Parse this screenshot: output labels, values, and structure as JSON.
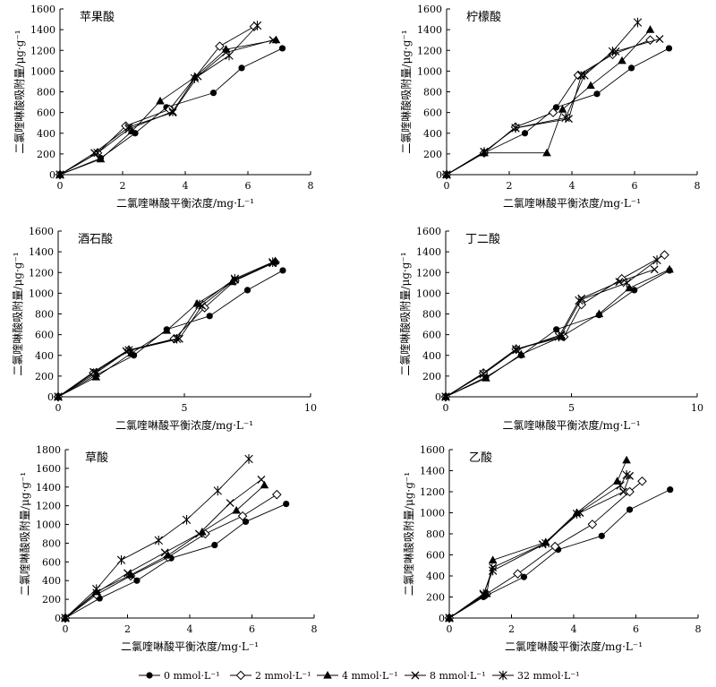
{
  "legend": [
    {
      "name": "0 mmol·L⁻¹",
      "marker": "filled-circle"
    },
    {
      "name": "2 mmol·L⁻¹",
      "marker": "open-diamond"
    },
    {
      "name": "4 mmol·L⁻¹",
      "marker": "filled-triangle"
    },
    {
      "name": "8 mmol·L⁻¹",
      "marker": "cross"
    },
    {
      "name": "32 mmol·L⁻¹",
      "marker": "asterisk"
    }
  ],
  "chart_data": [
    {
      "type": "line",
      "title": "苹果酸",
      "xlabel": "二氯喹啉酸平衡浓度/mg·L⁻¹",
      "ylabel": "二氯喹啉酸吸附量/μg·g⁻¹",
      "xlim": [
        0,
        8
      ],
      "ylim": [
        0,
        1600
      ],
      "xticks": [
        0,
        2,
        4,
        6,
        8
      ],
      "yticks": [
        0,
        200,
        400,
        600,
        800,
        1000,
        1200,
        1400,
        1600
      ],
      "series": [
        {
          "name": "0 mmol·L⁻¹",
          "x": [
            0,
            1.3,
            2.4,
            3.4,
            4.9,
            5.8,
            7.1
          ],
          "y": [
            0,
            160,
            400,
            650,
            790,
            1030,
            1220
          ]
        },
        {
          "name": "2 mmol·L⁻¹",
          "x": [
            0,
            1.2,
            2.1,
            3.5,
            5.1,
            6.2
          ],
          "y": [
            0,
            210,
            470,
            630,
            1240,
            1430
          ]
        },
        {
          "name": "4 mmol·L⁻¹",
          "x": [
            0,
            1.3,
            2.3,
            3.2,
            4.3,
            5.3,
            6.9
          ],
          "y": [
            0,
            150,
            420,
            710,
            940,
            1210,
            1300
          ]
        },
        {
          "name": "8 mmol·L⁻¹",
          "x": [
            0,
            1.1,
            2.2,
            3.6,
            4.4,
            5.3,
            6.8
          ],
          "y": [
            0,
            210,
            460,
            600,
            950,
            1180,
            1300
          ]
        },
        {
          "name": "32 mmol·L⁻¹",
          "x": [
            0,
            1.2,
            2.2,
            3.6,
            4.3,
            5.4,
            6.3
          ],
          "y": [
            0,
            210,
            440,
            610,
            930,
            1150,
            1440
          ]
        }
      ]
    },
    {
      "type": "line",
      "title": "柠檬酸",
      "xlabel": "二氯喹啉酸平衡浓度/mg·L⁻¹",
      "ylabel": "二氯喹啉酸吸附量/μg·g⁻¹",
      "xlim": [
        0,
        8
      ],
      "ylim": [
        0,
        1600
      ],
      "xticks": [
        0,
        2,
        4,
        6,
        8
      ],
      "yticks": [
        0,
        200,
        400,
        600,
        800,
        1000,
        1200,
        1400,
        1600
      ],
      "series": [
        {
          "name": "0 mmol·L⁻¹",
          "x": [
            0,
            1.2,
            2.5,
            3.5,
            4.8,
            5.9,
            7.1
          ],
          "y": [
            0,
            210,
            400,
            650,
            780,
            1030,
            1220
          ]
        },
        {
          "name": "2 mmol·L⁻¹",
          "x": [
            0,
            1.2,
            2.2,
            3.4,
            4.2,
            5.3,
            6.5
          ],
          "y": [
            0,
            210,
            460,
            600,
            960,
            1160,
            1300
          ]
        },
        {
          "name": "4 mmol·L⁻¹",
          "x": [
            0,
            1.2,
            3.2,
            3.7,
            4.6,
            5.6,
            6.5
          ],
          "y": [
            0,
            210,
            210,
            630,
            860,
            1100,
            1400
          ]
        },
        {
          "name": "8 mmol·L⁻¹",
          "x": [
            0,
            1.2,
            2.2,
            3.9,
            4.3,
            5.4,
            6.8
          ],
          "y": [
            0,
            220,
            450,
            540,
            960,
            1190,
            1310
          ]
        },
        {
          "name": "32 mmol·L⁻¹",
          "x": [
            0,
            1.2,
            2.2,
            3.8,
            4.4,
            5.3,
            6.1
          ],
          "y": [
            0,
            220,
            450,
            550,
            960,
            1190,
            1470
          ]
        }
      ]
    },
    {
      "type": "line",
      "title": "酒石酸",
      "xlabel": "二氯喹啉酸平衡浓度/mg·L⁻¹",
      "ylabel": "二氯喹啉酸吸附量/μg·g⁻¹",
      "xlim": [
        0,
        10
      ],
      "ylim": [
        0,
        1600
      ],
      "xticks": [
        0,
        5,
        10
      ],
      "yticks": [
        0,
        200,
        400,
        600,
        800,
        1000,
        1200,
        1400,
        1600
      ],
      "series": [
        {
          "name": "0 mmol·L⁻¹",
          "x": [
            0,
            1.5,
            3.0,
            4.3,
            6.0,
            7.5,
            8.9
          ],
          "y": [
            0,
            210,
            400,
            650,
            780,
            1030,
            1220
          ]
        },
        {
          "name": "2 mmol·L⁻¹",
          "x": [
            0,
            1.4,
            2.8,
            4.6,
            5.8,
            7.0,
            8.6
          ],
          "y": [
            0,
            230,
            450,
            560,
            860,
            1120,
            1300
          ]
        },
        {
          "name": "4 mmol·L⁻¹",
          "x": [
            0,
            1.5,
            2.9,
            4.3,
            5.5,
            6.9,
            8.6
          ],
          "y": [
            0,
            190,
            420,
            640,
            900,
            1110,
            1310
          ]
        },
        {
          "name": "8 mmol·L⁻¹",
          "x": [
            0,
            1.4,
            2.7,
            4.8,
            5.7,
            7.0,
            8.5
          ],
          "y": [
            0,
            240,
            440,
            560,
            880,
            1130,
            1290
          ]
        },
        {
          "name": "32 mmol·L⁻¹",
          "x": [
            0,
            1.5,
            2.8,
            4.7,
            5.6,
            7.0,
            8.5
          ],
          "y": [
            0,
            230,
            450,
            560,
            890,
            1140,
            1300
          ]
        }
      ]
    },
    {
      "type": "line",
      "title": "丁二酸",
      "xlabel": "二氯喹啉酸平衡浓度/mg·L⁻¹",
      "ylabel": "二氯喹啉酸吸附量/μg·g⁻¹",
      "xlim": [
        0,
        10
      ],
      "ylim": [
        0,
        1600
      ],
      "xticks": [
        0,
        5,
        10
      ],
      "yticks": [
        0,
        200,
        400,
        600,
        800,
        1000,
        1200,
        1400,
        1600
      ],
      "series": [
        {
          "name": "0 mmol·L⁻¹",
          "x": [
            0,
            1.6,
            3.0,
            4.4,
            6.1,
            7.5,
            8.9
          ],
          "y": [
            0,
            190,
            400,
            650,
            790,
            1030,
            1220
          ]
        },
        {
          "name": "2 mmol·L⁻¹",
          "x": [
            0,
            1.5,
            2.8,
            4.7,
            5.4,
            7.0,
            8.7
          ],
          "y": [
            0,
            230,
            460,
            580,
            890,
            1140,
            1370
          ]
        },
        {
          "name": "4 mmol·L⁻¹",
          "x": [
            0,
            1.6,
            3.0,
            4.6,
            6.1,
            7.3,
            8.9
          ],
          "y": [
            0,
            180,
            410,
            580,
            800,
            1050,
            1230
          ]
        },
        {
          "name": "8 mmol·L⁻¹",
          "x": [
            0,
            1.5,
            2.8,
            4.6,
            5.4,
            6.9,
            8.3
          ],
          "y": [
            0,
            220,
            450,
            600,
            950,
            1110,
            1230
          ]
        },
        {
          "name": "32 mmol·L⁻¹",
          "x": [
            0,
            1.5,
            2.8,
            4.5,
            5.3,
            7.2,
            8.4
          ],
          "y": [
            0,
            220,
            460,
            580,
            930,
            1100,
            1320
          ]
        }
      ]
    },
    {
      "type": "line",
      "title": "草酸",
      "xlabel": "二氯喹啉酸平衡浓度/mg·L⁻¹",
      "ylabel": "二氯喹啉酸吸附量/μg·g⁻¹",
      "xlim": [
        0,
        8
      ],
      "ylim": [
        0,
        1800
      ],
      "xticks": [
        0,
        2,
        4,
        6,
        8
      ],
      "yticks": [
        0,
        200,
        400,
        600,
        800,
        1000,
        1200,
        1400,
        1600,
        1800
      ],
      "series": [
        {
          "name": "0 mmol·L⁻¹",
          "x": [
            0,
            1.1,
            2.3,
            3.4,
            4.8,
            5.8,
            7.1
          ],
          "y": [
            0,
            210,
            400,
            640,
            780,
            1030,
            1220
          ]
        },
        {
          "name": "2 mmol·L⁻¹",
          "x": [
            0,
            1.0,
            2.1,
            3.3,
            4.5,
            5.7,
            6.8
          ],
          "y": [
            0,
            250,
            450,
            650,
            900,
            1090,
            1320
          ]
        },
        {
          "name": "4 mmol·L⁻¹",
          "x": [
            0,
            1.0,
            2.1,
            3.3,
            4.4,
            5.5,
            6.4
          ],
          "y": [
            0,
            280,
            460,
            670,
            920,
            1150,
            1420
          ]
        },
        {
          "name": "8 mmol·L⁻¹",
          "x": [
            0,
            1.0,
            2.0,
            3.2,
            4.3,
            5.3,
            6.3
          ],
          "y": [
            0,
            270,
            480,
            700,
            900,
            1230,
            1480
          ]
        },
        {
          "name": "32 mmol·L⁻¹",
          "x": [
            0,
            1.0,
            1.8,
            3.0,
            3.9,
            4.9,
            5.9
          ],
          "y": [
            0,
            310,
            620,
            830,
            1050,
            1360,
            1700
          ]
        }
      ]
    },
    {
      "type": "line",
      "title": "乙酸",
      "xlabel": "二氯喹啉酸平衡浓度/mg·L⁻¹",
      "ylabel": "二氯喹啉酸吸附量/μg·g⁻¹",
      "xlim": [
        0,
        8
      ],
      "ylim": [
        0,
        1600
      ],
      "xticks": [
        0,
        2,
        4,
        6,
        8
      ],
      "yticks": [
        0,
        200,
        400,
        600,
        800,
        1000,
        1200,
        1400,
        1600
      ],
      "series": [
        {
          "name": "0 mmol·L⁻¹",
          "x": [
            0,
            1.1,
            2.4,
            3.5,
            4.9,
            5.8,
            7.1
          ],
          "y": [
            0,
            200,
            390,
            650,
            780,
            1030,
            1220
          ]
        },
        {
          "name": "2 mmol·L⁻¹",
          "x": [
            0,
            1.2,
            2.2,
            3.4,
            4.6,
            5.8,
            6.2
          ],
          "y": [
            0,
            230,
            420,
            680,
            890,
            1200,
            1300
          ]
        },
        {
          "name": "4 mmol·L⁻¹",
          "x": [
            0,
            1.2,
            1.4,
            3.1,
            4.1,
            5.4,
            5.7
          ],
          "y": [
            0,
            230,
            550,
            720,
            1000,
            1300,
            1500
          ]
        },
        {
          "name": "8 mmol·L⁻¹",
          "x": [
            0,
            1.1,
            1.4,
            3.0,
            4.2,
            5.6,
            5.8
          ],
          "y": [
            0,
            220,
            480,
            700,
            1000,
            1200,
            1350
          ]
        },
        {
          "name": "32 mmol·L⁻¹",
          "x": [
            0,
            1.1,
            1.4,
            3.1,
            4.1,
            5.5,
            5.7
          ],
          "y": [
            0,
            230,
            450,
            710,
            990,
            1260,
            1360
          ]
        }
      ]
    }
  ]
}
